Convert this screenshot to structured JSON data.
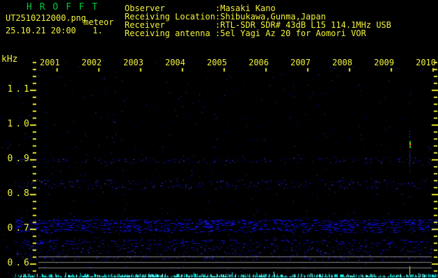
{
  "header": {
    "title": "HROFFT",
    "filename": "UT2510212000.png",
    "mode_label": "meteor",
    "datetime": "25.10.21 20:00",
    "counter": "1.",
    "info_rows": [
      {
        "label": "Observer",
        "value": ":Masaki Kano"
      },
      {
        "label": "Receiving Location",
        "value": ":Shibukawa,Gunma,Japan"
      },
      {
        "label": "Receiver",
        "value": ":RTL-SDR SDR# 43dB L15 114.1MHz USB"
      },
      {
        "label": "Receiving antenna",
        "value": ":5el Yagi Az 20 for Aomori VOR"
      }
    ]
  },
  "colors": {
    "background": "#000000",
    "text_yellow": "#f2f23c",
    "title_green": "#00c83c",
    "tick_yellow": "#e8e832",
    "noise_blue": "#0000b0",
    "trace_cyan": "#00d8d8",
    "grid_grey": "#8a8a8a",
    "echo_core_green": "#19d219",
    "echo_core_orange": "#ffb400",
    "echo_core_red": "#f03c28",
    "marker_yellow": "#f0f030"
  },
  "chart_data": {
    "type": "heatmap",
    "subtype": "HROFFT radio meteor-echo spectrogram, 10-minute frame with signal-level trace",
    "x_axis": {
      "unit": "UT time (hhmm)",
      "start": "20:00",
      "end": "20:10",
      "minutes_per_tick": 1,
      "tick_labels": [
        "2001",
        "2002",
        "2003",
        "2004",
        "2005",
        "2006",
        "2007",
        "2008",
        "2009",
        "2010"
      ]
    },
    "y_axis": {
      "unit": "kHz",
      "tick_labels": [
        "1.1",
        "1.0",
        "0.9",
        "0.8",
        "0.7",
        "0.6"
      ],
      "range_khz": [
        0.58,
        1.18
      ],
      "minor_tick_khz": 0.02,
      "ticks_on_both_sides": true
    },
    "background_noise": "sparse dark-blue random speckle on black",
    "noise_bands": [
      {
        "khz_high": 0.728,
        "khz_low": 0.69,
        "intensity": "strong"
      },
      {
        "khz_high": 0.67,
        "khz_low": 0.656,
        "intensity": "medium"
      },
      {
        "khz_high": 0.654,
        "khz_low": 0.61,
        "intensity": "faint"
      },
      {
        "khz_high": 0.906,
        "khz_low": 0.89,
        "intensity": "faint"
      },
      {
        "khz_high": 0.842,
        "khz_low": 0.816,
        "intensity": "faint"
      }
    ],
    "events": [
      {
        "time": "20:09:26",
        "type": "meteor echo",
        "intensity": "strong",
        "khz_core_high": 0.954,
        "khz_core_low": 0.934,
        "khz_spread_high": 0.984,
        "khz_spread_low": 0.856,
        "bottom_marker": true
      },
      {
        "time": "20:07:50",
        "type": "faint echo",
        "intensity": "faint",
        "khz_core_high": 0.836,
        "khz_core_low": 0.824,
        "khz_spread_high": 0.842,
        "khz_spread_low": 0.816,
        "bottom_marker": false
      }
    ],
    "level_graph": {
      "description": "received signal level trace along bottom edge",
      "trace_color": "cyan",
      "grid_line_count": 3,
      "grid_color": "grey"
    }
  }
}
